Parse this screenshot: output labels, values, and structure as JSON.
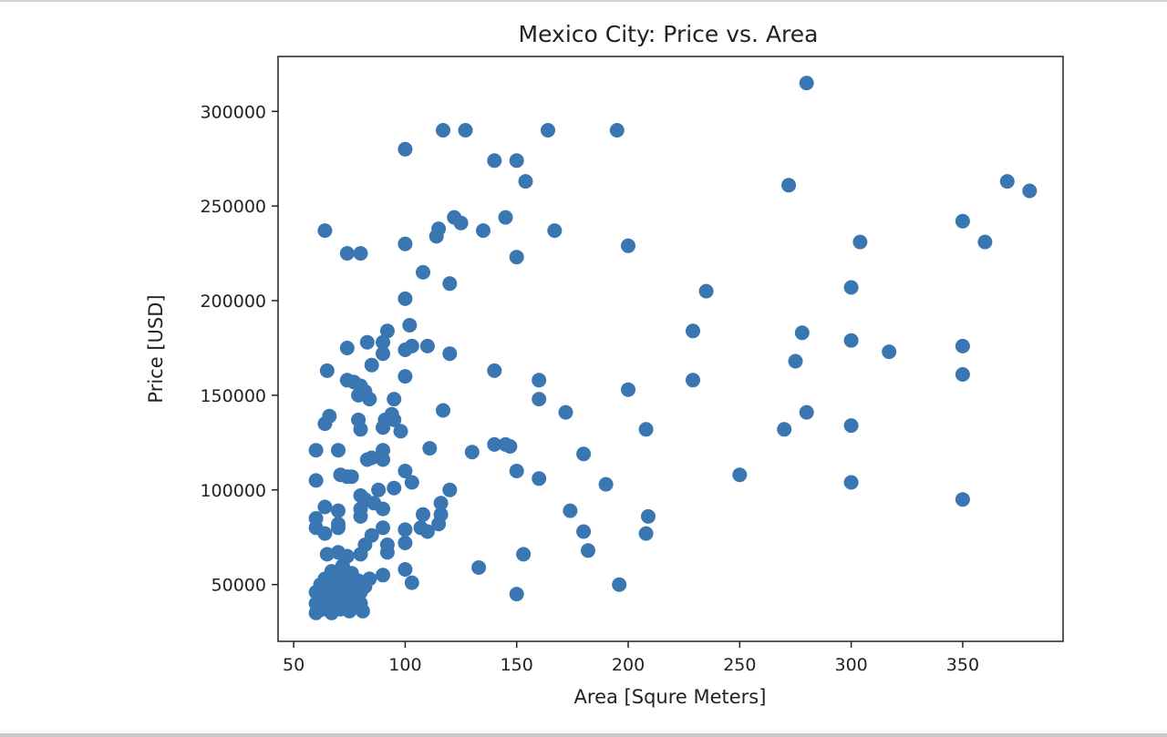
{
  "chart_data": {
    "type": "scatter",
    "title": "Mexico City: Price vs. Area",
    "xlabel": "Area [Squre Meters]",
    "ylabel": "Price [USD]",
    "xlim": [
      43,
      395
    ],
    "ylim": [
      20000,
      329000
    ],
    "xticks": [
      50,
      100,
      150,
      200,
      250,
      300,
      350
    ],
    "yticks": [
      50000,
      100000,
      150000,
      200000,
      250000,
      300000
    ],
    "xtick_labels": [
      "50",
      "100",
      "150",
      "200",
      "250",
      "300",
      "350"
    ],
    "ytick_labels": [
      "50000",
      "100000",
      "150000",
      "200000",
      "250000",
      "300000"
    ],
    "grid": false,
    "marker_color": "#3a76b2",
    "points": [
      [
        280,
        315000
      ],
      [
        100,
        280000
      ],
      [
        117,
        290000
      ],
      [
        127,
        290000
      ],
      [
        164,
        290000
      ],
      [
        195,
        290000
      ],
      [
        140,
        274000
      ],
      [
        150,
        274000
      ],
      [
        154,
        263000
      ],
      [
        272,
        261000
      ],
      [
        370,
        263000
      ],
      [
        380,
        258000
      ],
      [
        64,
        237000
      ],
      [
        115,
        238000
      ],
      [
        122,
        244000
      ],
      [
        125,
        241000
      ],
      [
        135,
        237000
      ],
      [
        145,
        244000
      ],
      [
        167,
        237000
      ],
      [
        100,
        230000
      ],
      [
        114,
        234000
      ],
      [
        74,
        225000
      ],
      [
        80,
        225000
      ],
      [
        150,
        223000
      ],
      [
        200,
        229000
      ],
      [
        304,
        231000
      ],
      [
        350,
        242000
      ],
      [
        360,
        231000
      ],
      [
        108,
        215000
      ],
      [
        120,
        209000
      ],
      [
        235,
        205000
      ],
      [
        300,
        207000
      ],
      [
        100,
        201000
      ],
      [
        92,
        184000
      ],
      [
        102,
        187000
      ],
      [
        90,
        178000
      ],
      [
        100,
        174000
      ],
      [
        103,
        176000
      ],
      [
        110,
        176000
      ],
      [
        120,
        172000
      ],
      [
        83,
        178000
      ],
      [
        74,
        175000
      ],
      [
        90,
        172000
      ],
      [
        229,
        184000
      ],
      [
        278,
        183000
      ],
      [
        300,
        179000
      ],
      [
        317,
        173000
      ],
      [
        350,
        176000
      ],
      [
        275,
        168000
      ],
      [
        65,
        163000
      ],
      [
        140,
        163000
      ],
      [
        85,
        166000
      ],
      [
        74,
        158000
      ],
      [
        77,
        157000
      ],
      [
        100,
        160000
      ],
      [
        160,
        158000
      ],
      [
        229,
        158000
      ],
      [
        350,
        161000
      ],
      [
        79,
        150000
      ],
      [
        80,
        155000
      ],
      [
        82,
        152000
      ],
      [
        84,
        148000
      ],
      [
        95,
        148000
      ],
      [
        160,
        148000
      ],
      [
        200,
        153000
      ],
      [
        66,
        139000
      ],
      [
        64,
        135000
      ],
      [
        79,
        137000
      ],
      [
        80,
        132000
      ],
      [
        90,
        133000
      ],
      [
        91,
        137000
      ],
      [
        94,
        140000
      ],
      [
        95,
        137000
      ],
      [
        98,
        131000
      ],
      [
        117,
        142000
      ],
      [
        172,
        141000
      ],
      [
        208,
        132000
      ],
      [
        280,
        141000
      ],
      [
        270,
        132000
      ],
      [
        300,
        134000
      ],
      [
        60,
        121000
      ],
      [
        70,
        121000
      ],
      [
        71,
        108000
      ],
      [
        74,
        107000
      ],
      [
        76,
        107000
      ],
      [
        83,
        116000
      ],
      [
        85,
        117000
      ],
      [
        90,
        116000
      ],
      [
        90,
        121000
      ],
      [
        100,
        110000
      ],
      [
        103,
        104000
      ],
      [
        111,
        122000
      ],
      [
        130,
        120000
      ],
      [
        140,
        124000
      ],
      [
        145,
        124000
      ],
      [
        147,
        123000
      ],
      [
        150,
        110000
      ],
      [
        160,
        106000
      ],
      [
        180,
        119000
      ],
      [
        190,
        103000
      ],
      [
        250,
        108000
      ],
      [
        300,
        104000
      ],
      [
        350,
        95000
      ],
      [
        60,
        105000
      ],
      [
        64,
        91000
      ],
      [
        70,
        89000
      ],
      [
        70,
        82000
      ],
      [
        80,
        97000
      ],
      [
        80,
        90000
      ],
      [
        82,
        95000
      ],
      [
        86,
        93000
      ],
      [
        88,
        100000
      ],
      [
        90,
        90000
      ],
      [
        95,
        101000
      ],
      [
        108,
        87000
      ],
      [
        116,
        93000
      ],
      [
        116,
        87000
      ],
      [
        120,
        100000
      ],
      [
        174,
        89000
      ],
      [
        209,
        86000
      ],
      [
        60,
        85000
      ],
      [
        60,
        80000
      ],
      [
        64,
        77000
      ],
      [
        70,
        80000
      ],
      [
        80,
        86000
      ],
      [
        85,
        76000
      ],
      [
        90,
        80000
      ],
      [
        92,
        71000
      ],
      [
        92,
        67000
      ],
      [
        100,
        79000
      ],
      [
        100,
        72000
      ],
      [
        107,
        80000
      ],
      [
        110,
        78000
      ],
      [
        115,
        82000
      ],
      [
        180,
        78000
      ],
      [
        208,
        77000
      ],
      [
        65,
        66000
      ],
      [
        70,
        67000
      ],
      [
        72,
        60000
      ],
      [
        74,
        65000
      ],
      [
        80,
        66000
      ],
      [
        82,
        71000
      ],
      [
        90,
        55000
      ],
      [
        100,
        58000
      ],
      [
        103,
        51000
      ],
      [
        133,
        59000
      ],
      [
        153,
        66000
      ],
      [
        182,
        68000
      ],
      [
        196,
        50000
      ],
      [
        150,
        45000
      ],
      [
        60,
        46000
      ],
      [
        60,
        40000
      ],
      [
        60,
        35000
      ],
      [
        62,
        50000
      ],
      [
        63,
        44000
      ],
      [
        64,
        53000
      ],
      [
        65,
        38000
      ],
      [
        66,
        42000
      ],
      [
        66,
        48000
      ],
      [
        67,
        57000
      ],
      [
        68,
        51000
      ],
      [
        68,
        45000
      ],
      [
        69,
        40000
      ],
      [
        70,
        55000
      ],
      [
        70,
        47000
      ],
      [
        71,
        37000
      ],
      [
        72,
        43000
      ],
      [
        72,
        50000
      ],
      [
        73,
        53000
      ],
      [
        74,
        46000
      ],
      [
        75,
        41000
      ],
      [
        75,
        36000
      ],
      [
        76,
        56000
      ],
      [
        76,
        48000
      ],
      [
        77,
        43000
      ],
      [
        78,
        38000
      ],
      [
        79,
        52000
      ],
      [
        80,
        46000
      ],
      [
        80,
        40000
      ],
      [
        81,
        36000
      ],
      [
        82,
        49000
      ],
      [
        84,
        53000
      ],
      [
        78,
        44000
      ],
      [
        73,
        39000
      ],
      [
        67,
        35000
      ],
      [
        63,
        37000
      ]
    ]
  }
}
